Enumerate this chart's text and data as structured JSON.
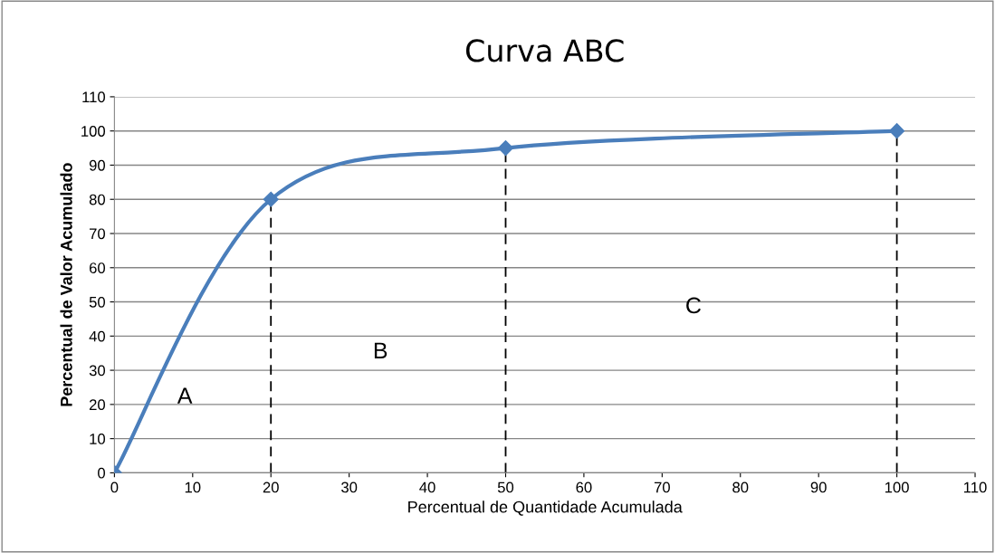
{
  "chart_data": {
    "type": "line",
    "title": "Curva ABC",
    "xlabel": "Percentual de Quantidade Acumulada",
    "ylabel": "Percentual de Valor Acumulado",
    "series": [
      {
        "x": [
          0,
          20,
          50,
          100
        ],
        "values": [
          0,
          80,
          95,
          100
        ],
        "color": "#4a7ebb",
        "marker": "diamond",
        "line_style": "solid"
      }
    ],
    "ref_lines": [
      {
        "axis": "x",
        "value": 20,
        "color": "#000000",
        "line_style": "dashed"
      },
      {
        "axis": "x",
        "value": 50,
        "color": "#000000",
        "line_style": "dashed"
      },
      {
        "axis": "x",
        "value": 100,
        "color": "#000000",
        "line_style": "dashed"
      }
    ],
    "annotations": [
      "A",
      "B",
      "C"
    ],
    "xlim": [
      0,
      110
    ],
    "xticks": [
      0,
      10,
      20,
      30,
      40,
      50,
      60,
      70,
      80,
      90,
      100,
      110
    ],
    "ylim": [
      0,
      110
    ],
    "yticks": [
      0,
      10,
      20,
      30,
      40,
      50,
      60,
      70,
      80,
      90,
      100,
      110
    ],
    "grid": "y",
    "legend": false
  }
}
